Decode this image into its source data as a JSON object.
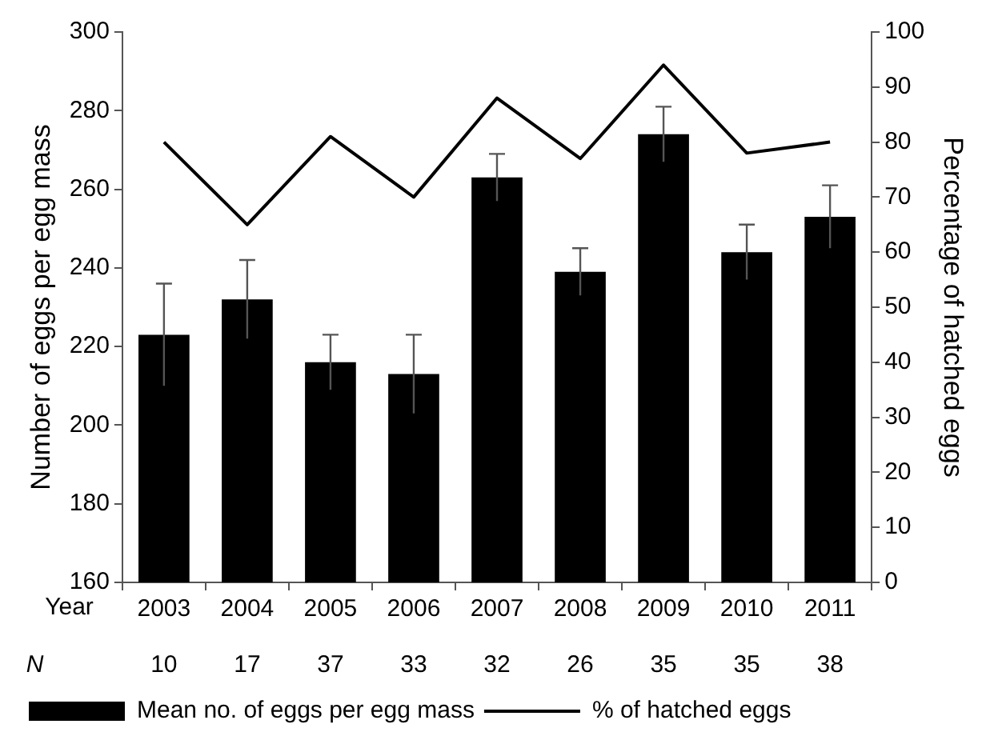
{
  "chart_data": {
    "type": "bar",
    "categories": [
      "2003",
      "2004",
      "2005",
      "2006",
      "2007",
      "2008",
      "2009",
      "2010",
      "2011"
    ],
    "xlabel": "Year",
    "ylabel": "Number of eggs per egg mass",
    "y2label": "Percentage of hatched eggs",
    "series": [
      {
        "name": "Mean no. of eggs per egg mass",
        "color": "#000000",
        "values": [
          223,
          232,
          216,
          213,
          263,
          239,
          274,
          244,
          253
        ],
        "errors": [
          13,
          10,
          7,
          10,
          6,
          6,
          7,
          7,
          8
        ]
      },
      {
        "name": "% of hatched eggs",
        "type": "line",
        "axis": "y2",
        "color": "#000000",
        "values": [
          80,
          65,
          81,
          70,
          88,
          77,
          94,
          78,
          80
        ]
      }
    ],
    "ylim": [
      160,
      300
    ],
    "yticks": [
      160,
      180,
      200,
      220,
      240,
      260,
      280,
      300
    ],
    "y2lim": [
      0,
      100
    ],
    "y2ticks": [
      0,
      10,
      20,
      30,
      40,
      50,
      60,
      70,
      80,
      90,
      100
    ],
    "marker": "none",
    "legend": "bottom",
    "annotations": [
      "N",
      "10",
      "17",
      "37",
      "33",
      "32",
      "26",
      "35",
      "35",
      "38"
    ]
  }
}
